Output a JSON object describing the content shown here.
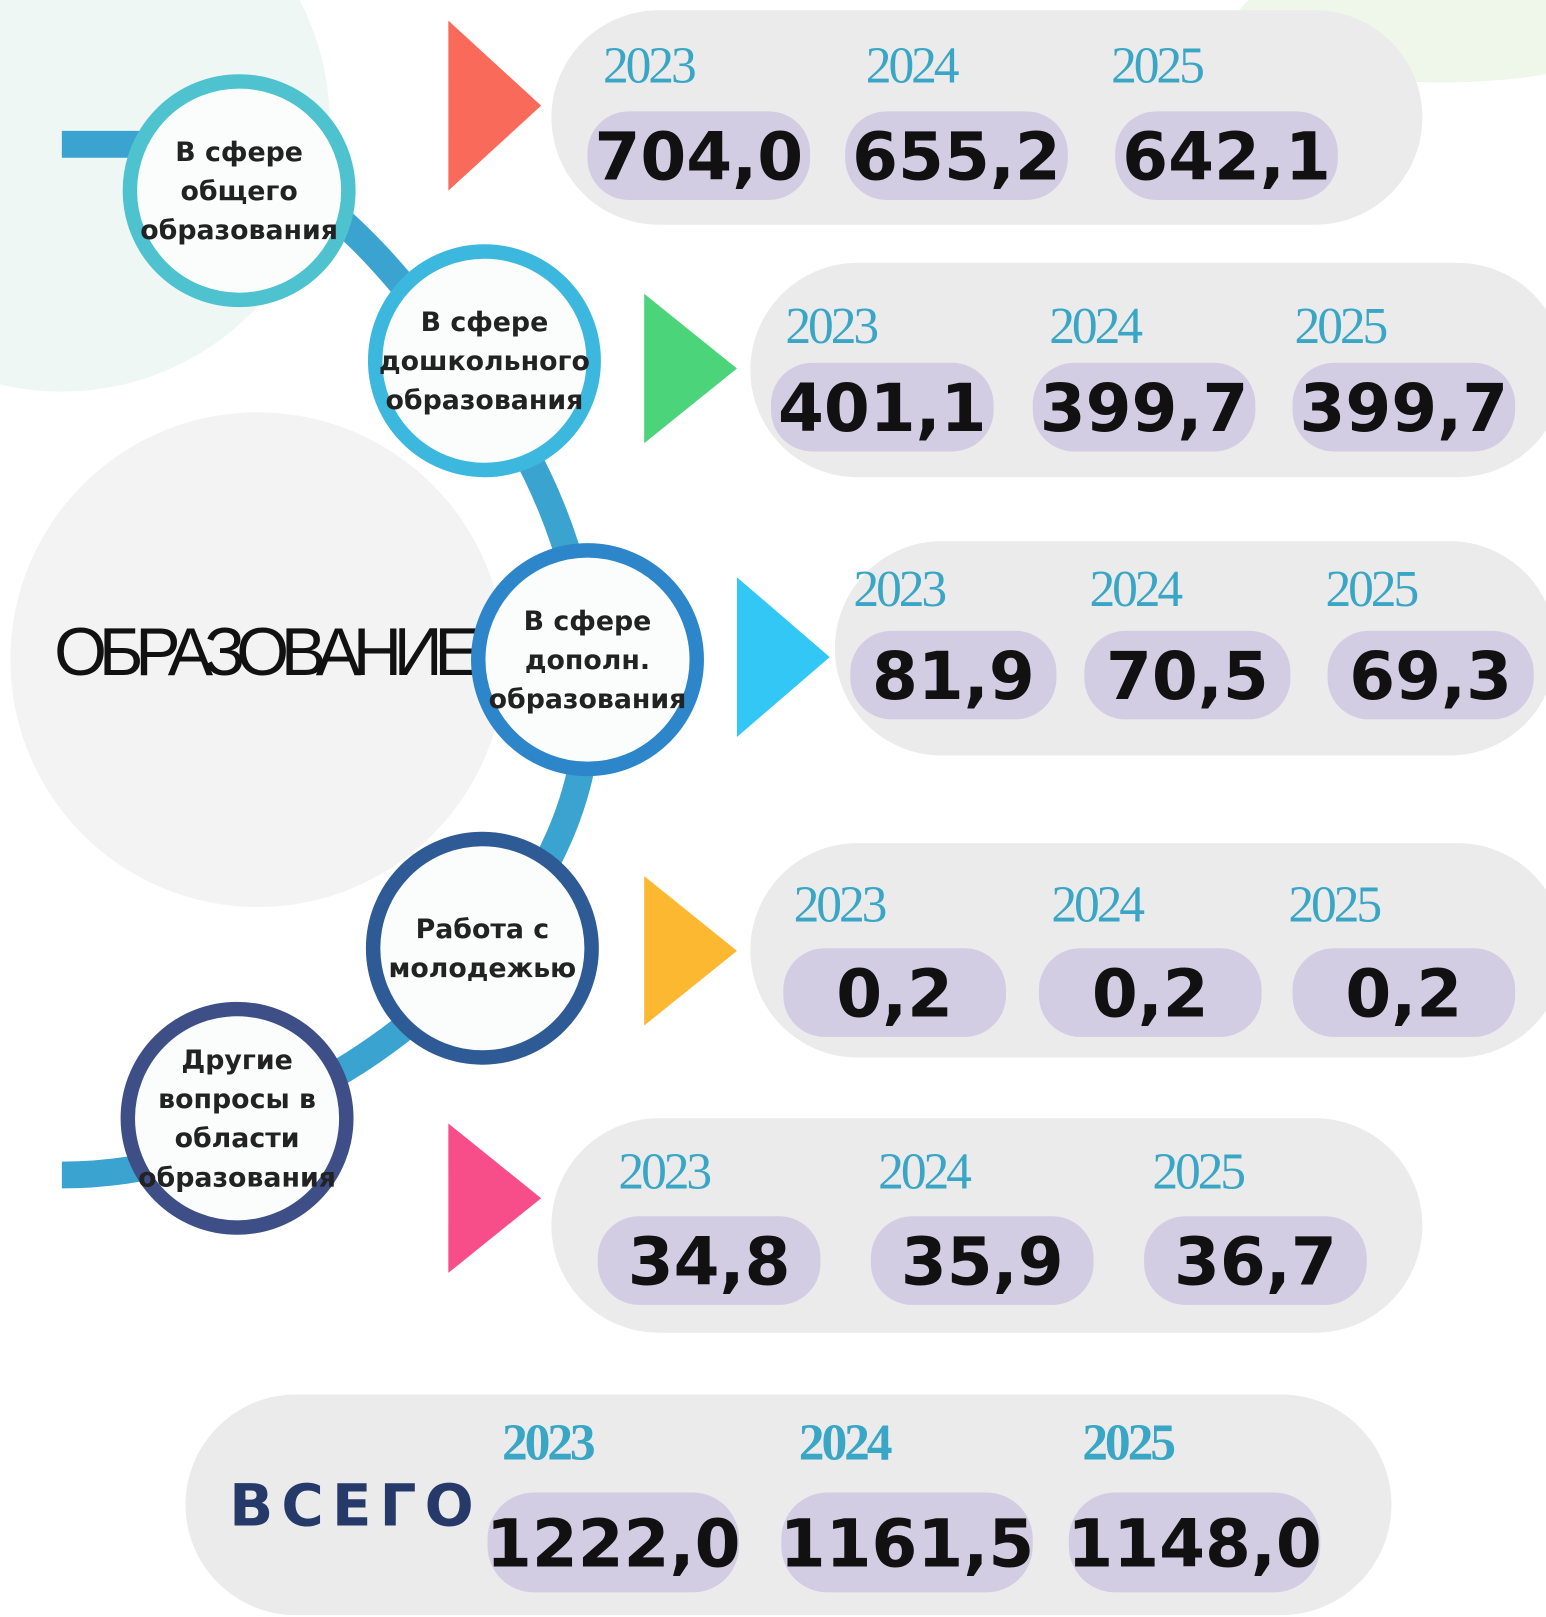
{
  "title": "ОБРАЗОВАНИЕ",
  "sections": [
    {
      "label": [
        "В сфере",
        "общего",
        "образования"
      ],
      "years": [
        "2023",
        "2024",
        "2025"
      ],
      "values": [
        "704,0",
        "655,2",
        "642,1"
      ]
    },
    {
      "label": [
        "В сфере",
        "дошкольного",
        "образования"
      ],
      "years": [
        "2023",
        "2024",
        "2025"
      ],
      "values": [
        "401,1",
        "399,7",
        "399,7"
      ]
    },
    {
      "label": [
        "В сфере",
        "дополн.",
        "образования"
      ],
      "years": [
        "2023",
        "2024",
        "2025"
      ],
      "values": [
        "81,9",
        "70,5",
        "69,3"
      ]
    },
    {
      "label": [
        "Работа с",
        "молодежью"
      ],
      "years": [
        "2023",
        "2024",
        "2025"
      ],
      "values": [
        "0,2",
        "0,2",
        "0,2"
      ]
    },
    {
      "label": [
        "Другие",
        "вопросы в",
        "области",
        "образования"
      ],
      "years": [
        "2023",
        "2024",
        "2025"
      ],
      "values": [
        "34,8",
        "35,9",
        "36,7"
      ]
    }
  ],
  "total": {
    "label": "ВСЕГО",
    "years": [
      "2023",
      "2024",
      "2025"
    ],
    "values": [
      "1222,0",
      "1161,5",
      "1148,0"
    ]
  }
}
